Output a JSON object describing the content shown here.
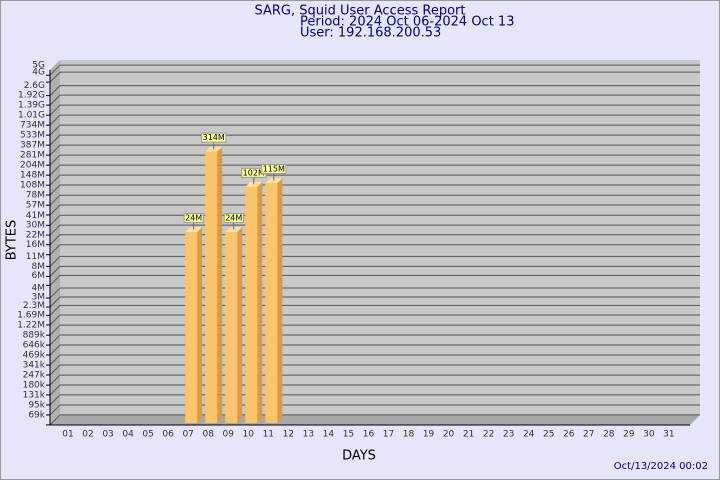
{
  "chart_data": {
    "type": "bar",
    "title": "SARG, Squid User Access Report",
    "subtitle": [
      "Period: 2024 Oct 06-2024 Oct 13",
      "User: 192.168.200.53"
    ],
    "xlabel": "DAYS",
    "ylabel": "BYTES",
    "footer": "Oct/13/2024 00:02",
    "categories": [
      "01",
      "02",
      "03",
      "04",
      "05",
      "06",
      "07",
      "08",
      "09",
      "10",
      "11",
      "12",
      "13",
      "14",
      "15",
      "16",
      "17",
      "18",
      "19",
      "20",
      "21",
      "22",
      "23",
      "24",
      "25",
      "26",
      "27",
      "28",
      "29",
      "30",
      "31"
    ],
    "values": [
      null,
      null,
      null,
      null,
      null,
      null,
      24000000,
      314000000,
      24000000,
      102000000,
      115000000,
      null,
      null,
      null,
      null,
      null,
      null,
      null,
      null,
      null,
      null,
      null,
      null,
      null,
      null,
      null,
      null,
      null,
      null,
      null,
      null
    ],
    "value_labels": [
      null,
      null,
      null,
      null,
      null,
      null,
      "24M",
      "314M",
      "24M",
      "102M",
      "115M",
      null,
      null,
      null,
      null,
      null,
      null,
      null,
      null,
      null,
      null,
      null,
      null,
      null,
      null,
      null,
      null,
      null,
      null,
      null,
      null
    ],
    "color": "#f9c46e",
    "log_scale": true,
    "grid": true,
    "ylim": [
      50000,
      5900000000
    ],
    "yticks": [
      {
        "value": 69000,
        "label": "69k"
      },
      {
        "value": 95000,
        "label": "95k"
      },
      {
        "value": 131000,
        "label": "131k"
      },
      {
        "value": 180000,
        "label": "180k"
      },
      {
        "value": 247000,
        "label": "247k"
      },
      {
        "value": 341000,
        "label": "341k"
      },
      {
        "value": 469000,
        "label": "469k"
      },
      {
        "value": 646000,
        "label": "646k"
      },
      {
        "value": 889000,
        "label": "889k"
      },
      {
        "value": 1220000,
        "label": "1.22M"
      },
      {
        "value": 1690000,
        "label": "1.69M"
      },
      {
        "value": 2300000,
        "label": "2.3M"
      },
      {
        "value": 3000000,
        "label": "3M"
      },
      {
        "value": 4000000,
        "label": "4M"
      },
      {
        "value": 6000000,
        "label": "6M"
      },
      {
        "value": 8000000,
        "label": "8M"
      },
      {
        "value": 11000000,
        "label": "11M"
      },
      {
        "value": 16000000,
        "label": "16M"
      },
      {
        "value": 22000000,
        "label": "22M"
      },
      {
        "value": 30000000,
        "label": "30M"
      },
      {
        "value": 41000000,
        "label": "41M"
      },
      {
        "value": 57000000,
        "label": "57M"
      },
      {
        "value": 78000000,
        "label": "78M"
      },
      {
        "value": 108000000,
        "label": "108M"
      },
      {
        "value": 148000000,
        "label": "148M"
      },
      {
        "value": 204000000,
        "label": "204M"
      },
      {
        "value": 281000000,
        "label": "281M"
      },
      {
        "value": 387000000,
        "label": "387M"
      },
      {
        "value": 533000000,
        "label": "533M"
      },
      {
        "value": 734000000,
        "label": "734M"
      },
      {
        "value": 1010000000,
        "label": "1.01G"
      },
      {
        "value": 1390000000,
        "label": "1.39G"
      },
      {
        "value": 1920000000,
        "label": "1.92G"
      },
      {
        "value": 2600000000,
        "label": "2.6G"
      },
      {
        "value": 4000000000,
        "label": "4G"
      },
      {
        "value": 5000000000,
        "label": "5G"
      }
    ]
  }
}
